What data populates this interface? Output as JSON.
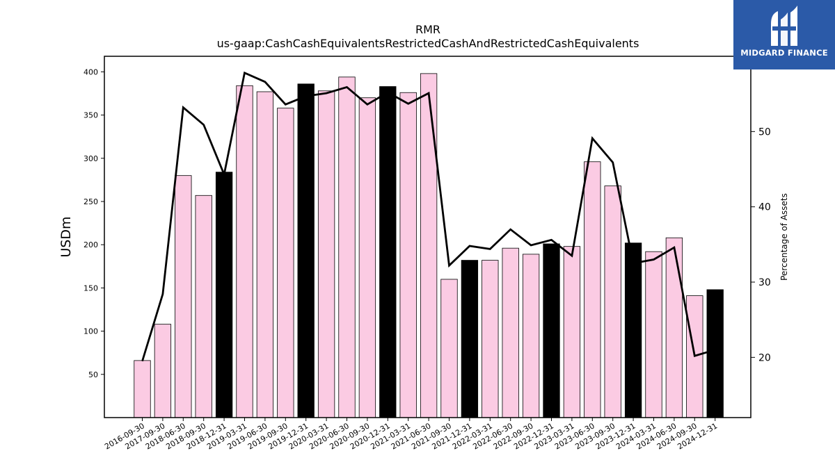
{
  "chart_data": {
    "type": "bar",
    "title": "RMR",
    "subtitle": "us-gaap:CashCashEquivalentsRestrictedCashAndRestrictedCashEquivalents",
    "ylabel": "USDm",
    "y2label": "Percentage of Assets",
    "ylim": [
      0,
      418
    ],
    "y2lim": [
      12,
      60
    ],
    "yticks": [
      50,
      100,
      150,
      200,
      250,
      300,
      350,
      400
    ],
    "y2ticks": [
      20,
      30,
      40,
      50
    ],
    "categories": [
      "2016-09-30",
      "2017-09-30",
      "2018-06-30",
      "2018-09-30",
      "2018-12-31",
      "2019-03-31",
      "2019-06-30",
      "2019-09-30",
      "2019-12-31",
      "2020-03-31",
      "2020-06-30",
      "2020-09-30",
      "2020-12-31",
      "2021-03-31",
      "2021-06-30",
      "2021-09-30",
      "2021-12-31",
      "2022-03-31",
      "2022-06-30",
      "2022-09-30",
      "2022-12-31",
      "2023-03-31",
      "2023-06-30",
      "2023-09-30",
      "2023-12-31",
      "2024-03-31",
      "2024-06-30",
      "2024-09-30",
      "2024-12-31"
    ],
    "series": [
      {
        "type": "bar",
        "values": [
          66,
          108,
          280,
          257,
          284,
          384,
          377,
          358,
          386,
          378,
          394,
          370,
          383,
          376,
          398,
          160,
          182,
          182,
          196,
          189,
          201,
          198,
          296,
          268,
          202,
          192,
          208,
          141,
          148
        ],
        "colors": [
          "#fbcbe3",
          "#fbcbe3",
          "#fbcbe3",
          "#fbcbe3",
          "#000000",
          "#fbcbe3",
          "#fbcbe3",
          "#fbcbe3",
          "#000000",
          "#fbcbe3",
          "#fbcbe3",
          "#fbcbe3",
          "#000000",
          "#fbcbe3",
          "#fbcbe3",
          "#fbcbe3",
          "#000000",
          "#fbcbe3",
          "#fbcbe3",
          "#fbcbe3",
          "#000000",
          "#fbcbe3",
          "#fbcbe3",
          "#fbcbe3",
          "#000000",
          "#fbcbe3",
          "#fbcbe3",
          "#fbcbe3",
          "#000000"
        ]
      },
      {
        "type": "line",
        "axis": "right",
        "color": "#000000",
        "values": [
          19.5,
          28.4,
          53.2,
          50.9,
          44.3,
          57.8,
          56.6,
          53.6,
          54.7,
          55.1,
          55.9,
          53.6,
          55.2,
          53.7,
          55.1,
          32.2,
          34.8,
          34.4,
          37.0,
          34.9,
          35.6,
          33.5,
          49.1,
          45.9,
          32.5,
          33.0,
          34.6,
          20.2,
          21.0
        ]
      }
    ],
    "grid": false,
    "legend": "none"
  },
  "logo": {
    "text": "MIDGARD FINANCE",
    "background": "#2b5aa8"
  }
}
